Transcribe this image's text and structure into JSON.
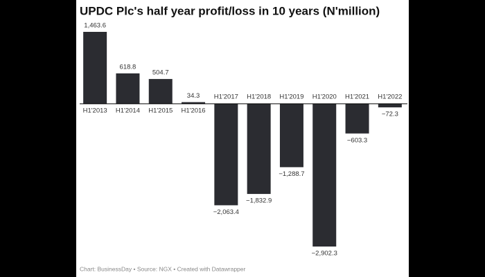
{
  "chart_data": {
    "type": "bar",
    "title": "UPDC Plc's half year profit/loss in 10 years (N'million)",
    "categories": [
      "H1'2013",
      "H1'2014",
      "H1'2015",
      "H1'2016",
      "H1'2017",
      "H1'2018",
      "H1'2019",
      "H1'2020",
      "H1'2021",
      "H1'2022"
    ],
    "values": [
      1463.6,
      618.8,
      504.7,
      34.3,
      -2063.4,
      -1832.9,
      -1288.7,
      -2902.3,
      -603.3,
      -72.3
    ],
    "value_labels": [
      "1,463.6",
      "618.8",
      "504.7",
      "34.3",
      "−2,063.4",
      "−1,832.9",
      "−1,288.7",
      "−2,902.3",
      "−603.3",
      "−72.3"
    ],
    "color": "#2b2c31",
    "source": "Chart: BusinessDay • Source: NGX • Created with Datawrapper"
  }
}
